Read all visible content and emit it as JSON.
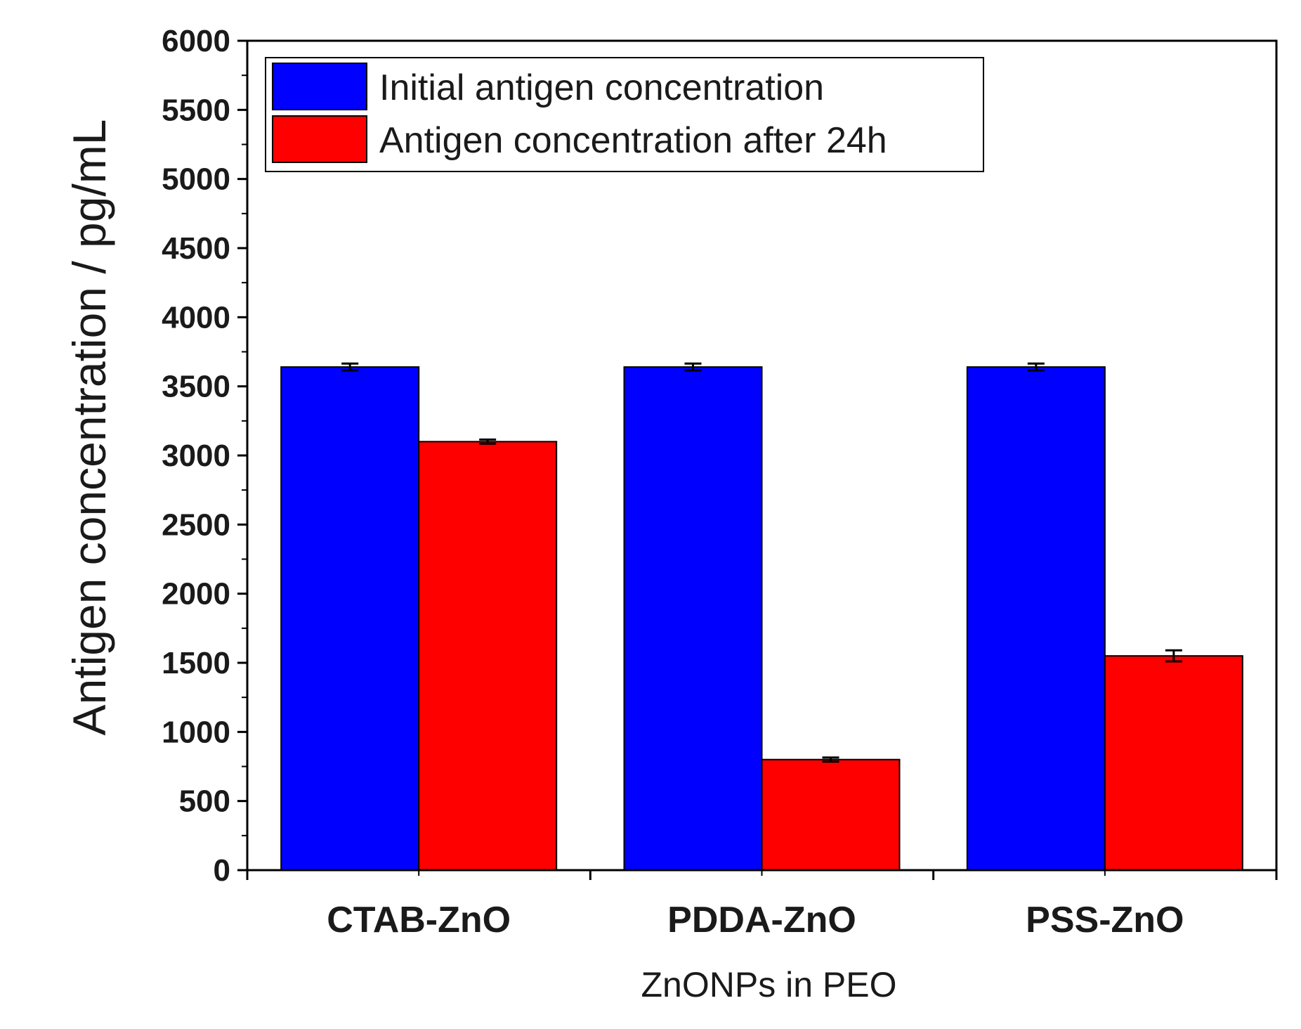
{
  "chart_data": {
    "type": "bar",
    "xlabel": "ZnONPs in PEO",
    "ylabel": "Antigen concentration / pg/mL",
    "ylim": [
      0,
      6000
    ],
    "yticks": [
      0,
      500,
      1000,
      1500,
      2000,
      2500,
      3000,
      3500,
      4000,
      4500,
      5000,
      5500,
      6000
    ],
    "categories": [
      "CTAB-ZnO",
      "PDDA-ZnO",
      "PSS-ZnO"
    ],
    "series": [
      {
        "name": "Initial antigen concentration",
        "color": "#0000ff",
        "values": [
          3640,
          3640,
          3640
        ],
        "errors": [
          25,
          25,
          25
        ]
      },
      {
        "name": "Antigen concentration after 24h",
        "color": "#ff0000",
        "values": [
          3100,
          800,
          1550
        ],
        "errors": [
          15,
          15,
          40
        ]
      }
    ],
    "legend_position": "top-left",
    "grid": false
  }
}
